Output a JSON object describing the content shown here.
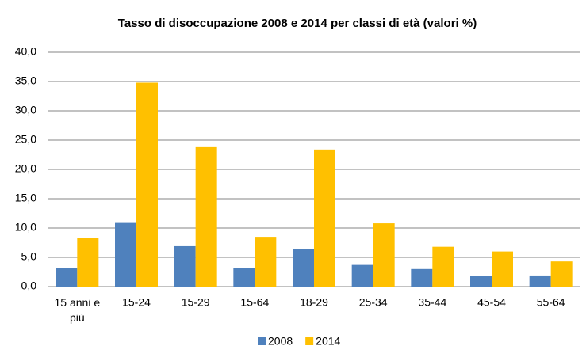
{
  "chart_data": {
    "type": "bar",
    "title": "Tasso di disoccupazione  2008 e 2014 per classi di età (valori %)",
    "categories": [
      "15 anni e più",
      "15-24",
      "15-29",
      "15-64",
      "18-29",
      "25-34",
      "35-44",
      "45-54",
      "55-64"
    ],
    "series": [
      {
        "name": "2008",
        "color": "#4f81bd",
        "values": [
          3.2,
          11.0,
          6.9,
          3.2,
          6.4,
          3.7,
          3.0,
          1.8,
          1.9
        ]
      },
      {
        "name": "2014",
        "color": "#ffc000",
        "values": [
          8.3,
          34.8,
          23.8,
          8.5,
          23.4,
          10.8,
          6.8,
          6.0,
          4.3
        ]
      }
    ],
    "ylim": [
      0,
      40
    ],
    "yticks": [
      {
        "value": 0,
        "label": "0,0"
      },
      {
        "value": 5,
        "label": "5,0"
      },
      {
        "value": 10,
        "label": "10,0"
      },
      {
        "value": 15,
        "label": "15,0"
      },
      {
        "value": 20,
        "label": "20,0"
      },
      {
        "value": 25,
        "label": "25,0"
      },
      {
        "value": 30,
        "label": "30,0"
      },
      {
        "value": 35,
        "label": "35,0"
      },
      {
        "value": 40,
        "label": "40,0"
      }
    ],
    "grid": true,
    "legend": "bottom"
  }
}
